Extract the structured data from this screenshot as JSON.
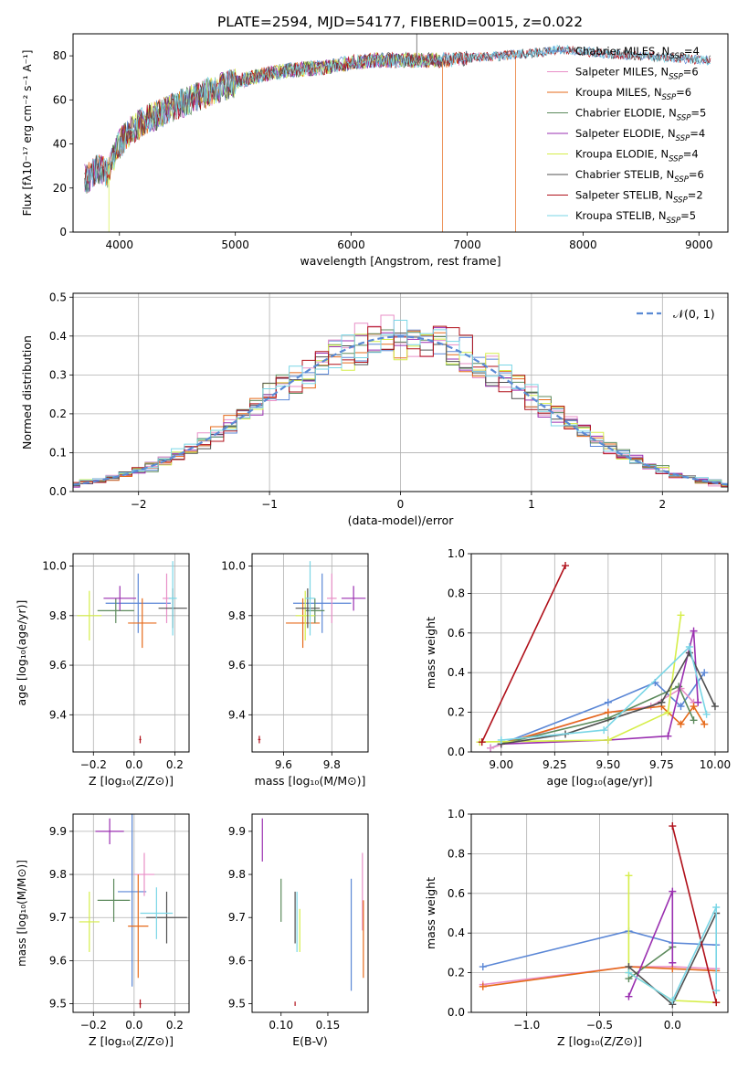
{
  "figure": {
    "title": "PLATE=2594, MJD=54177, FIBERID=0015, z=0.022"
  },
  "colors": {
    "Chabrier MILES": "#5b87d6",
    "Salpeter MILES": "#e88fc7",
    "Kroupa MILES": "#e66a1a",
    "Chabrier ELODIE": "#5c8a5c",
    "Salpeter ELODIE": "#9a2fb0",
    "Kroupa ELODIE": "#d6ee4a",
    "Chabrier STELIB": "#505050",
    "Salpeter STELIB": "#b0101a",
    "Kroupa STELIB": "#7ad6e6"
  },
  "chart_data": [
    {
      "id": "spectrum",
      "type": "line",
      "xlabel": "wavelength [Angstrom, rest frame]",
      "ylabel": "Flux [fλ10⁻¹⁷ erg cm⁻² s⁻¹ A⁻¹]",
      "xlim": [
        3600,
        9250
      ],
      "ylim": [
        0,
        90
      ],
      "xticks": [
        4000,
        5000,
        6000,
        7000,
        8000,
        9000
      ],
      "yticks": [
        0,
        20,
        40,
        60,
        80
      ],
      "grid": false,
      "legend": "top-right",
      "legend_entries": [
        {
          "label": "Chabrier MILES, N",
          "sub": "SSP",
          "suffix": "=4",
          "model": "Chabrier MILES"
        },
        {
          "label": "Salpeter MILES, N",
          "sub": "SSP",
          "suffix": "=6",
          "model": "Salpeter MILES"
        },
        {
          "label": "Kroupa MILES, N",
          "sub": "SSP",
          "suffix": "=6",
          "model": "Kroupa MILES"
        },
        {
          "label": "Chabrier ELODIE, N",
          "sub": "SSP",
          "suffix": "=5",
          "model": "Chabrier ELODIE"
        },
        {
          "label": "Salpeter ELODIE, N",
          "sub": "SSP",
          "suffix": "=4",
          "model": "Salpeter ELODIE"
        },
        {
          "label": "Kroupa ELODIE, N",
          "sub": "SSP",
          "suffix": "=4",
          "model": "Kroupa ELODIE"
        },
        {
          "label": "Chabrier STELIB, N",
          "sub": "SSP",
          "suffix": "=6",
          "model": "Chabrier STELIB"
        },
        {
          "label": "Salpeter STELIB, N",
          "sub": "SSP",
          "suffix": "=2",
          "model": "Salpeter STELIB"
        },
        {
          "label": "Kroupa STELIB, N",
          "sub": "SSP",
          "suffix": "=5",
          "model": "Kroupa STELIB"
        }
      ],
      "continuum": {
        "x": [
          3720,
          3800,
          3900,
          4000,
          4100,
          4200,
          4400,
          4600,
          4800,
          5000,
          5200,
          5400,
          5600,
          5800,
          6000,
          6200,
          6500,
          6800,
          7000,
          7300,
          7500,
          7700,
          7800,
          8000,
          8200,
          8500,
          8800,
          9000
        ],
        "y": [
          24,
          29,
          27,
          40,
          46,
          50,
          55,
          60,
          64,
          68,
          71,
          73,
          74,
          75,
          77,
          78,
          78,
          78,
          79,
          80,
          81,
          82,
          83,
          82,
          81,
          80,
          79,
          78
        ]
      },
      "model_ranges": [
        {
          "model": "Salpeter MILES",
          "x": [
            3700,
            7400
          ]
        },
        {
          "model": "Kroupa MILES",
          "x": [
            3700,
            7420
          ]
        },
        {
          "model": "Chabrier MILES",
          "x": [
            3700,
            9100
          ]
        },
        {
          "model": "Chabrier ELODIE",
          "x": [
            3700,
            6790
          ]
        },
        {
          "model": "Salpeter ELODIE",
          "x": [
            3700,
            6790
          ]
        },
        {
          "model": "Kroupa ELODIE",
          "x": [
            3900,
            6790
          ]
        },
        {
          "model": "Salpeter STELIB",
          "x": [
            3700,
            9100
          ]
        },
        {
          "model": "Chabrier STELIB",
          "x": [
            3700,
            9100
          ]
        },
        {
          "model": "Kroupa STELIB",
          "x": [
            3700,
            9100
          ]
        }
      ],
      "drops": [
        {
          "x": 3905,
          "model": "Kroupa ELODIE"
        },
        {
          "x": 6790,
          "model": "Kroupa MILES"
        },
        {
          "x": 7420,
          "model": "Kroupa MILES"
        }
      ]
    },
    {
      "id": "residual-histogram",
      "type": "line",
      "xlabel": "(data-model)/error",
      "ylabel": "Normed distribution",
      "xlim": [
        -2.5,
        2.5
      ],
      "ylim": [
        0,
        0.51
      ],
      "xticks": [
        -2,
        -1,
        0,
        1,
        2
      ],
      "yticks": [
        0.0,
        0.1,
        0.2,
        0.3,
        0.4,
        0.5
      ],
      "grid": true,
      "legend": "top-right",
      "reference_label": "𝒩(0, 1)",
      "bin_width": 0.1
    },
    {
      "id": "age-vs-Z",
      "type": "scatter",
      "xlabel": "Z [log₁₀(Z/Z⊙)]",
      "ylabel": "age  [log₁₀(age/yr)]",
      "xlim": [
        -0.3,
        0.27
      ],
      "ylim": [
        9.25,
        10.05
      ],
      "xticks": [
        -0.2,
        0.0,
        0.2
      ],
      "yticks": [
        9.4,
        9.6,
        9.8,
        10.0
      ],
      "grid": true,
      "points": [
        {
          "model": "Chabrier MILES",
          "x": 0.02,
          "y": 9.85,
          "xerr": 0.16,
          "yerr": 0.12
        },
        {
          "model": "Salpeter MILES",
          "x": 0.16,
          "y": 9.87,
          "xerr": 0.02,
          "yerr": 0.1
        },
        {
          "model": "Kroupa MILES",
          "x": 0.04,
          "y": 9.77,
          "xerr": 0.07,
          "yerr": 0.1
        },
        {
          "model": "Chabrier ELODIE",
          "x": -0.09,
          "y": 9.82,
          "xerr": 0.09,
          "yerr": 0.05
        },
        {
          "model": "Salpeter ELODIE",
          "x": -0.07,
          "y": 9.87,
          "xerr": 0.08,
          "yerr": 0.05
        },
        {
          "model": "Kroupa ELODIE",
          "x": -0.22,
          "y": 9.8,
          "xerr": 0.06,
          "yerr": 0.1
        },
        {
          "model": "Chabrier STELIB",
          "x": 0.19,
          "y": 9.83,
          "xerr": 0.07,
          "yerr": 0.08
        },
        {
          "model": "Salpeter STELIB",
          "x": 0.03,
          "y": 9.3,
          "xerr": 0.005,
          "yerr": 0.015
        },
        {
          "model": "Kroupa STELIB",
          "x": 0.19,
          "y": 9.87,
          "xerr": 0.02,
          "yerr": 0.15
        }
      ]
    },
    {
      "id": "age-vs-mass",
      "type": "scatter",
      "xlabel": "mass [log₁₀(M/M⊙)]",
      "ylabel": "",
      "xlim": [
        9.47,
        9.95
      ],
      "ylim": [
        9.25,
        10.05
      ],
      "xticks": [
        9.6,
        9.8
      ],
      "yticks": [
        9.4,
        9.6,
        9.8,
        10.0
      ],
      "grid": true,
      "points": [
        {
          "model": "Chabrier MILES",
          "x": 9.76,
          "y": 9.85,
          "xerr": 0.12,
          "yerr": 0.12
        },
        {
          "model": "Salpeter MILES",
          "x": 9.8,
          "y": 9.87,
          "xerr": 0.02,
          "yerr": 0.1
        },
        {
          "model": "Kroupa MILES",
          "x": 9.68,
          "y": 9.77,
          "xerr": 0.07,
          "yerr": 0.1
        },
        {
          "model": "Chabrier ELODIE",
          "x": 9.73,
          "y": 9.82,
          "xerr": 0.04,
          "yerr": 0.05
        },
        {
          "model": "Salpeter ELODIE",
          "x": 9.89,
          "y": 9.87,
          "xerr": 0.05,
          "yerr": 0.05
        },
        {
          "model": "Kroupa ELODIE",
          "x": 9.69,
          "y": 9.8,
          "xerr": 0.04,
          "yerr": 0.1
        },
        {
          "model": "Chabrier STELIB",
          "x": 9.7,
          "y": 9.83,
          "xerr": 0.05,
          "yerr": 0.08
        },
        {
          "model": "Salpeter STELIB",
          "x": 9.5,
          "y": 9.3,
          "xerr": 0.005,
          "yerr": 0.015
        },
        {
          "model": "Kroupa STELIB",
          "x": 9.71,
          "y": 9.87,
          "xerr": 0.02,
          "yerr": 0.15
        }
      ]
    },
    {
      "id": "mass-weight-vs-age",
      "type": "line",
      "xlabel": "age  [log₁₀(age/yr)]",
      "ylabel": "mass weight",
      "xlim": [
        8.86,
        10.06
      ],
      "ylim": [
        0,
        1
      ],
      "xticks": [
        9.0,
        9.25,
        9.5,
        9.75,
        10.0
      ],
      "yticks": [
        0.0,
        0.2,
        0.4,
        0.6,
        0.8,
        1.0
      ],
      "grid": true,
      "series": [
        {
          "model": "Chabrier MILES",
          "x": [
            8.95,
            9.5,
            9.72,
            9.84,
            9.95
          ],
          "y": [
            0.02,
            0.25,
            0.35,
            0.23,
            0.4
          ]
        },
        {
          "model": "Salpeter MILES",
          "x": [
            8.95,
            9.5,
            9.7,
            9.84,
            9.9
          ],
          "y": [
            0.02,
            0.2,
            0.23,
            0.32,
            0.25
          ]
        },
        {
          "model": "Kroupa MILES",
          "x": [
            9.0,
            9.5,
            9.75,
            9.84,
            9.9,
            9.95
          ],
          "y": [
            0.04,
            0.2,
            0.23,
            0.14,
            0.23,
            0.14
          ]
        },
        {
          "model": "Chabrier ELODIE",
          "x": [
            9.0,
            9.5,
            9.83,
            9.9
          ],
          "y": [
            0.04,
            0.17,
            0.33,
            0.16
          ]
        },
        {
          "model": "Salpeter ELODIE",
          "x": [
            9.0,
            9.5,
            9.78,
            9.9,
            9.92
          ],
          "y": [
            0.04,
            0.06,
            0.08,
            0.61,
            0.25
          ]
        },
        {
          "model": "Kroupa ELODIE",
          "x": [
            8.9,
            9.5,
            9.78,
            9.84
          ],
          "y": [
            0.05,
            0.06,
            0.2,
            0.69
          ]
        },
        {
          "model": "Chabrier STELIB",
          "x": [
            9.0,
            9.3,
            9.75,
            9.88,
            10.0
          ],
          "y": [
            0.04,
            0.09,
            0.25,
            0.5,
            0.23
          ]
        },
        {
          "model": "Salpeter STELIB",
          "x": [
            8.91,
            9.3
          ],
          "y": [
            0.05,
            0.94
          ]
        },
        {
          "model": "Kroupa STELIB",
          "x": [
            9.0,
            9.48,
            9.88,
            9.96
          ],
          "y": [
            0.06,
            0.11,
            0.53,
            0.19
          ]
        }
      ]
    },
    {
      "id": "mass-vs-Z",
      "type": "scatter",
      "xlabel": "Z [log₁₀(Z/Z⊙)]",
      "ylabel": "mass [log₁₀(M/M⊙)]",
      "xlim": [
        -0.3,
        0.27
      ],
      "ylim": [
        9.48,
        9.94
      ],
      "xticks": [
        -0.2,
        0.0,
        0.2
      ],
      "yticks": [
        9.5,
        9.6,
        9.7,
        9.8,
        9.9
      ],
      "grid": true,
      "points": [
        {
          "model": "Chabrier MILES",
          "x": -0.01,
          "y": 9.76,
          "xerr": 0.07,
          "yerr": 0.22
        },
        {
          "model": "Salpeter MILES",
          "x": 0.05,
          "y": 9.8,
          "xerr": 0.05,
          "yerr": 0.05
        },
        {
          "model": "Kroupa MILES",
          "x": 0.02,
          "y": 9.68,
          "xerr": 0.05,
          "yerr": 0.12
        },
        {
          "model": "Chabrier ELODIE",
          "x": -0.1,
          "y": 9.74,
          "xerr": 0.08,
          "yerr": 0.05
        },
        {
          "model": "Salpeter ELODIE",
          "x": -0.12,
          "y": 9.9,
          "xerr": 0.07,
          "yerr": 0.03
        },
        {
          "model": "Kroupa ELODIE",
          "x": -0.22,
          "y": 9.69,
          "xerr": 0.05,
          "yerr": 0.07
        },
        {
          "model": "Chabrier STELIB",
          "x": 0.16,
          "y": 9.7,
          "xerr": 0.1,
          "yerr": 0.06
        },
        {
          "model": "Salpeter STELIB",
          "x": 0.03,
          "y": 9.5,
          "xerr": 0.005,
          "yerr": 0.01
        },
        {
          "model": "Kroupa STELIB",
          "x": 0.11,
          "y": 9.71,
          "xerr": 0.08,
          "yerr": 0.06
        }
      ]
    },
    {
      "id": "mass-vs-EBV",
      "type": "scatter",
      "xlabel": "E(B-V)",
      "ylabel": "",
      "xlim": [
        0.069,
        0.193
      ],
      "ylim": [
        9.48,
        9.94
      ],
      "xticks": [
        0.1,
        0.15
      ],
      "yticks": [
        9.5,
        9.6,
        9.7,
        9.8,
        9.9
      ],
      "grid": false,
      "points": [
        {
          "model": "Chabrier MILES",
          "x": 0.175,
          "y": 9.66,
          "xerr": 0,
          "yerr": 0.13
        },
        {
          "model": "Salpeter MILES",
          "x": 0.187,
          "y": 9.76,
          "xerr": 0,
          "yerr": 0.09
        },
        {
          "model": "Kroupa MILES",
          "x": 0.188,
          "y": 9.65,
          "xerr": 0,
          "yerr": 0.09
        },
        {
          "model": "Chabrier ELODIE",
          "x": 0.1,
          "y": 9.74,
          "xerr": 0,
          "yerr": 0.05
        },
        {
          "model": "Salpeter ELODIE",
          "x": 0.08,
          "y": 9.88,
          "xerr": 0,
          "yerr": 0.05
        },
        {
          "model": "Kroupa ELODIE",
          "x": 0.12,
          "y": 9.67,
          "xerr": 0,
          "yerr": 0.05
        },
        {
          "model": "Chabrier STELIB",
          "x": 0.115,
          "y": 9.7,
          "xerr": 0,
          "yerr": 0.06
        },
        {
          "model": "Salpeter STELIB",
          "x": 0.115,
          "y": 9.5,
          "xerr": 0,
          "yerr": 0.005
        },
        {
          "model": "Kroupa STELIB",
          "x": 0.117,
          "y": 9.69,
          "xerr": 0,
          "yerr": 0.07
        }
      ]
    },
    {
      "id": "mass-weight-vs-Z",
      "type": "line",
      "xlabel": "Z [log₁₀(Z/Z⊙)]",
      "ylabel": "mass weight",
      "xlim": [
        -1.38,
        0.38
      ],
      "ylim": [
        0,
        1
      ],
      "xticks": [
        -1.0,
        -0.5,
        0.0
      ],
      "yticks": [
        0.0,
        0.2,
        0.4,
        0.6,
        0.8,
        1.0
      ],
      "grid": true,
      "series": [
        {
          "model": "Chabrier MILES",
          "x": [
            -1.3,
            -0.3,
            0.0,
            0.3
          ],
          "y": [
            0.23,
            0.41,
            0.35,
            0.34
          ]
        },
        {
          "model": "Salpeter MILES",
          "x": [
            -1.3,
            -0.3,
            0.0,
            0.3
          ],
          "y": [
            0.14,
            0.23,
            0.23,
            0.22
          ]
        },
        {
          "model": "Kroupa MILES",
          "x": [
            -1.3,
            -0.3,
            0.0,
            0.3
          ],
          "y": [
            0.13,
            0.23,
            0.22,
            0.21
          ]
        },
        {
          "model": "Chabrier ELODIE",
          "x": [
            -0.3,
            0.0
          ],
          "y": [
            0.17,
            0.33
          ]
        },
        {
          "model": "Salpeter ELODIE",
          "x": [
            -0.3,
            0.0,
            0.0
          ],
          "y": [
            0.08,
            0.61,
            0.25
          ]
        },
        {
          "model": "Kroupa ELODIE",
          "x": [
            -0.3,
            -0.3,
            0.0,
            0.3
          ],
          "y": [
            0.69,
            0.2,
            0.06,
            0.05
          ]
        },
        {
          "model": "Chabrier STELIB",
          "x": [
            -0.3,
            0.0,
            0.3
          ],
          "y": [
            0.23,
            0.04,
            0.5
          ]
        },
        {
          "model": "Salpeter STELIB",
          "x": [
            0.0,
            0.3
          ],
          "y": [
            0.94,
            0.05
          ]
        },
        {
          "model": "Kroupa STELIB",
          "x": [
            -0.3,
            0.0,
            0.3,
            0.3
          ],
          "y": [
            0.2,
            0.06,
            0.53,
            0.11
          ]
        }
      ]
    }
  ]
}
